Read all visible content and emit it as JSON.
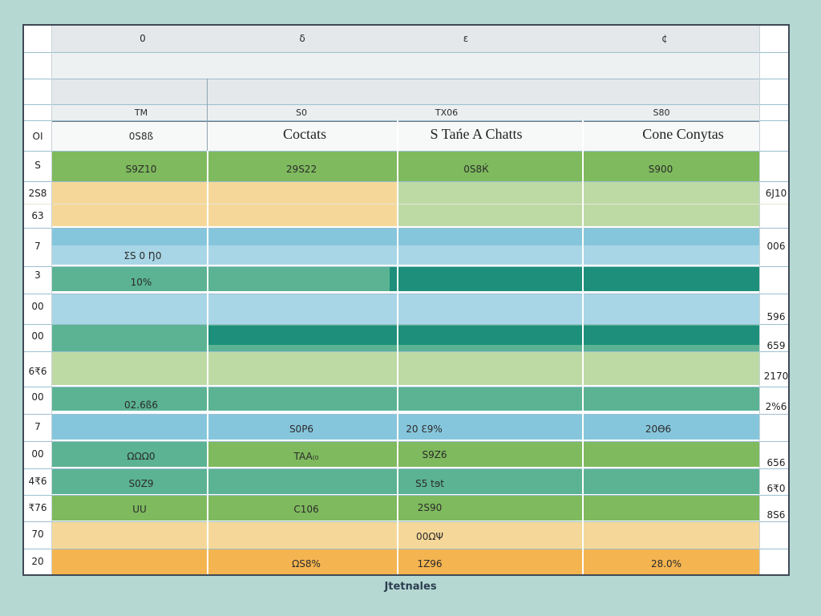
{
  "top_header": [
    "0",
    "δ",
    "ε",
    "¢"
  ],
  "sub_header": [
    "TM",
    "S0",
    "TX06",
    "S80"
  ],
  "titles": {
    "col0": "0S8ß",
    "col1": "Coctats",
    "col2": "S Tańe A Chatts",
    "col3": "Cone Conytas"
  },
  "left_labels": [
    "OI",
    "S",
    "2S8",
    "63",
    "7",
    "3",
    "00",
    "00",
    "6₹6",
    "00",
    "7",
    "00",
    "4₹6",
    "₹76",
    "70",
    "20"
  ],
  "right_labels": [
    "6J10",
    "006",
    "596",
    "659",
    "2170",
    "2%6",
    "656",
    "6₹0",
    "8S6"
  ],
  "cells": {
    "r1": [
      "S9Z10",
      "29S22",
      "0S8Ќ",
      "S900"
    ],
    "r3": "ΣS 0 Ŋ0",
    "r4": "10%",
    "r8": "02.6ß6",
    "r9": [
      "S0P6",
      "20 ℇ9%",
      "20Ѳ6"
    ],
    "r10": [
      "ΩΩΩ0",
      "TAA₍₀",
      "S9Z6"
    ],
    "r11": [
      "S0Ζ9",
      "S5 tɘt"
    ],
    "r12": [
      "UU",
      "C106",
      "2S90"
    ],
    "r13": "00ΩΨ",
    "r14": [
      "ΩS8%",
      "1Z96",
      "28.0%"
    ]
  },
  "footer": "Jtetnales",
  "colors": {
    "green": "#7fba5e",
    "light_green": "#bddaa5",
    "teal": "#5bb394",
    "dark_teal": "#1d8f7a",
    "blue": "#a8d6e6",
    "sky": "#86c6dc",
    "peach": "#f5d899",
    "orange": "#f4b450"
  }
}
